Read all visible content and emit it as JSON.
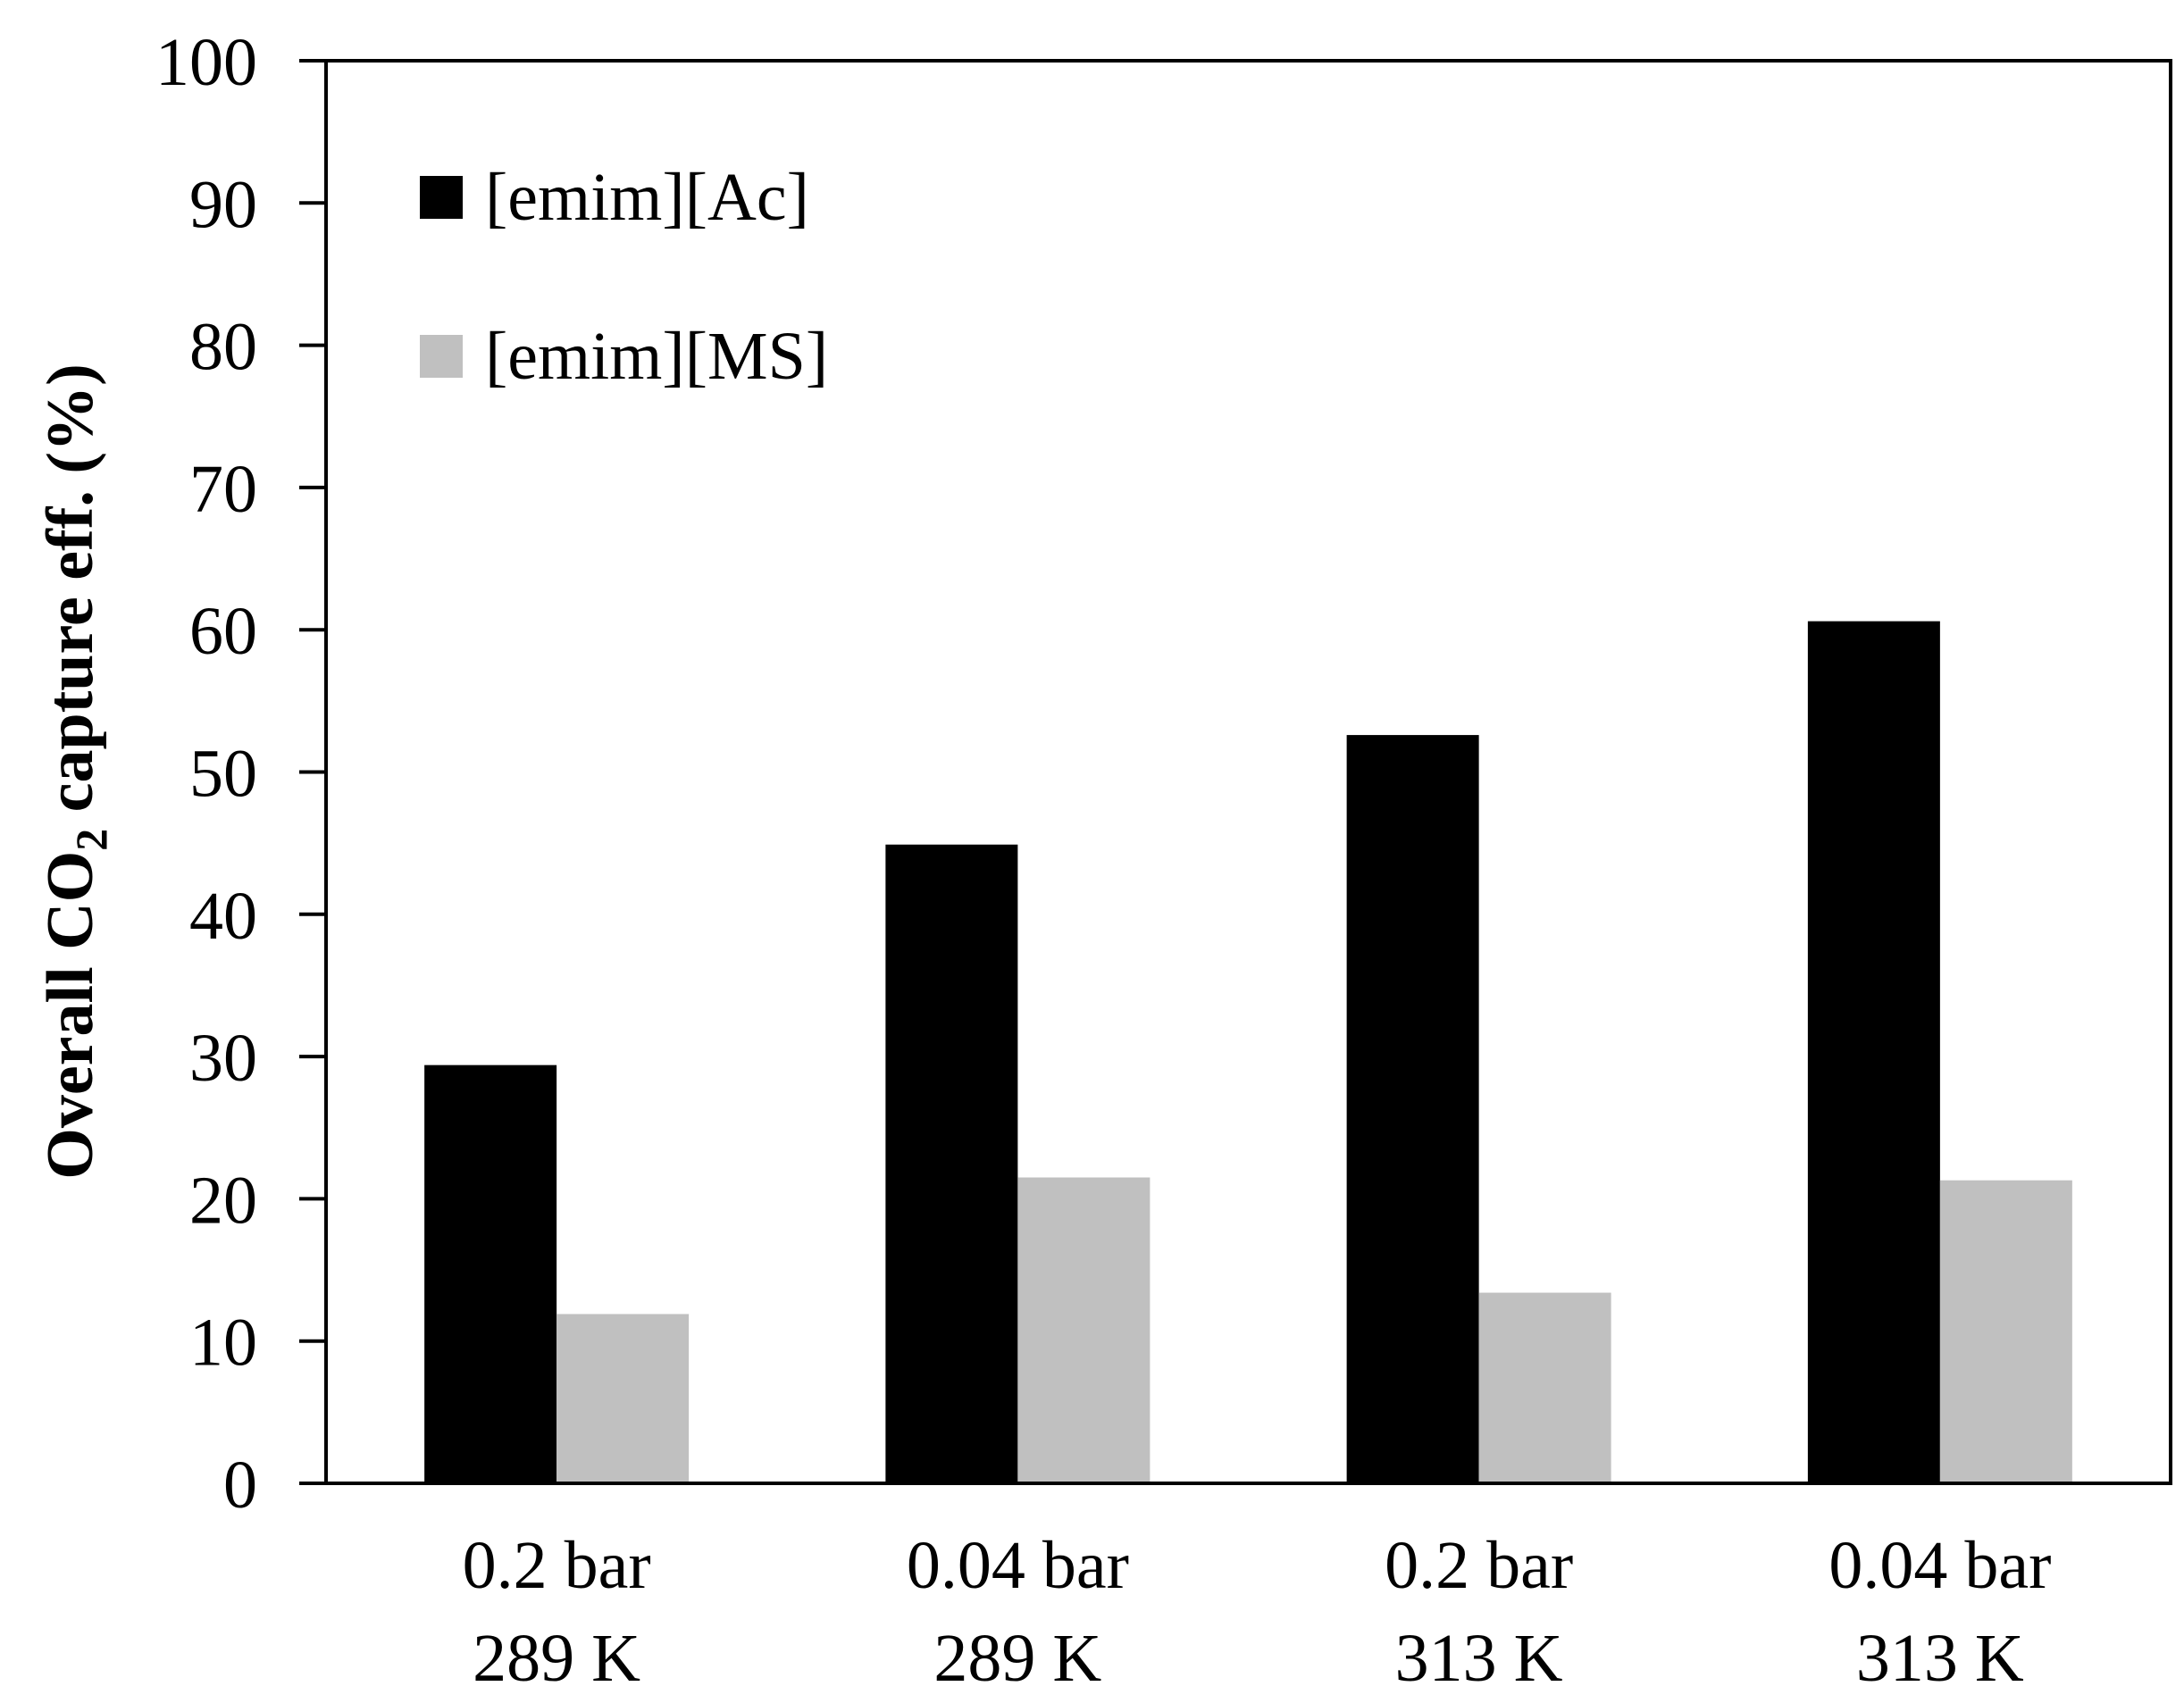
{
  "chart_data": {
    "type": "bar",
    "title": "",
    "xlabel": "",
    "ylabel": {
      "prefix": "Overall CO",
      "subscript": "2",
      "suffix": " capture  eff. (%)"
    },
    "ylim": [
      0,
      100
    ],
    "yticks": [
      "0",
      "10",
      "20",
      "30",
      "40",
      "50",
      "60",
      "70",
      "80",
      "90",
      "100"
    ],
    "grid": false,
    "legend_position": "top-left",
    "categories": [
      {
        "line1": "0.2 bar",
        "line2": "289 K"
      },
      {
        "line1": "0.04 bar",
        "line2": "289 K"
      },
      {
        "line1": "0.2 bar",
        "line2": "313 K"
      },
      {
        "line1": "0.04 bar",
        "line2": "313 K"
      }
    ],
    "series": [
      {
        "name": "[emim][Ac]",
        "color": "#000000",
        "values": [
          29.4,
          44.9,
          52.6,
          60.6
        ]
      },
      {
        "name": "[emim][MS]",
        "color": "#c0c0c0",
        "values": [
          11.9,
          21.5,
          13.4,
          21.3
        ]
      }
    ]
  }
}
